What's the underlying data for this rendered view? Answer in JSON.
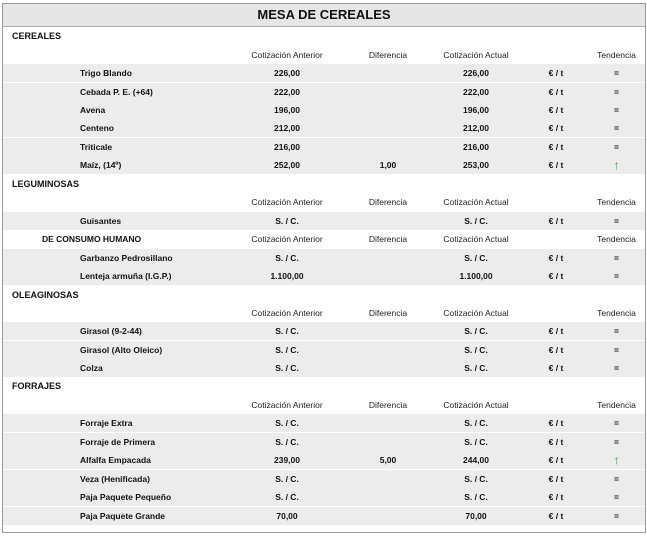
{
  "title": "MESA DE CEREALES",
  "headers": {
    "anterior": "Cotización Anterior",
    "diferencia": "Diferencia",
    "actual": "Cotización Actual",
    "tendencia": "Tendencia"
  },
  "sections": {
    "cereales": "CEREALES",
    "leguminosas": "LEGUMINOSAS",
    "consumo": "DE CONSUMO HUMANO",
    "oleaginosas": "OLEAGINOSAS",
    "forrajes": "FORRAJES"
  },
  "unit": "€ / t",
  "items": [
    {
      "name": "Trigo Blando",
      "anterior": "226,00",
      "diferencia": "",
      "actual": "226,00",
      "tendencia": "="
    },
    {
      "name": "Cebada P. E. (+64)",
      "anterior": "222,00",
      "diferencia": "",
      "actual": "222,00",
      "tendencia": "="
    },
    {
      "name": "Avena",
      "anterior": "196,00",
      "diferencia": "",
      "actual": "196,00",
      "tendencia": "="
    },
    {
      "name": "Centeno",
      "anterior": "212,00",
      "diferencia": "",
      "actual": "212,00",
      "tendencia": "="
    },
    {
      "name": "Triticale",
      "anterior": "216,00",
      "diferencia": "",
      "actual": "216,00",
      "tendencia": "="
    },
    {
      "name": "Maíz, (14º)",
      "anterior": "252,00",
      "diferencia": "1,00",
      "actual": "253,00",
      "tendencia": "↑"
    },
    {
      "name": "Guisantes",
      "anterior": "S. / C.",
      "diferencia": "",
      "actual": "S. / C.",
      "tendencia": "="
    },
    {
      "name": "Garbanzo Pedrosillano",
      "anterior": "S. / C.",
      "diferencia": "",
      "actual": "S. / C.",
      "tendencia": "="
    },
    {
      "name": "Lenteja armuña (I.G.P.)",
      "anterior": "1.100,00",
      "diferencia": "",
      "actual": "1.100,00",
      "tendencia": "="
    },
    {
      "name": "Girasol (9-2-44)",
      "anterior": "S. / C.",
      "diferencia": "",
      "actual": "S. / C.",
      "tendencia": "="
    },
    {
      "name": "Girasol (Alto Oleico)",
      "anterior": "S. / C.",
      "diferencia": "",
      "actual": "S. / C.",
      "tendencia": "="
    },
    {
      "name": "Colza",
      "anterior": "S. / C.",
      "diferencia": "",
      "actual": "S. / C.",
      "tendencia": "="
    },
    {
      "name": "Forraje Extra",
      "anterior": "S. / C.",
      "diferencia": "",
      "actual": "S. / C.",
      "tendencia": "="
    },
    {
      "name": "Forraje de Primera",
      "anterior": "S. / C.",
      "diferencia": "",
      "actual": "S. / C.",
      "tendencia": "="
    },
    {
      "name": "Alfalfa Empacada",
      "anterior": "239,00",
      "diferencia": "5,00",
      "actual": "244,00",
      "tendencia": "↑"
    },
    {
      "name": "Veza (Henificada)",
      "anterior": "S. / C.",
      "diferencia": "",
      "actual": "S. / C.",
      "tendencia": "="
    },
    {
      "name": "Paja Paquete Pequeño",
      "anterior": "S. / C.",
      "diferencia": "",
      "actual": "S. / C.",
      "tendencia": "="
    },
    {
      "name": "Paja Paquete Grande",
      "anterior": "70,00",
      "diferencia": "",
      "actual": "70,00",
      "tendencia": "="
    }
  ],
  "colors": {
    "up_arrow": "#2fa84f",
    "band": "#ececec"
  }
}
